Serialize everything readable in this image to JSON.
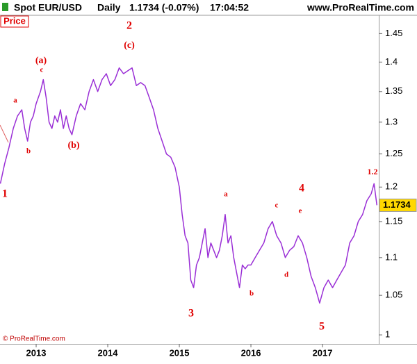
{
  "header": {
    "instrument": "Spot EUR/USD",
    "period": "Daily",
    "quote": "1.1734 (-0.07%)",
    "time": "17:04:52",
    "site": "www.ProRealTime.com"
  },
  "panel_label": "Price",
  "copyright": "© ProRealTime.com",
  "chart_data": {
    "type": "line",
    "log_scale": true,
    "grid": false,
    "x": [
      2012.5,
      2012.56,
      2012.62,
      2012.68,
      2012.74,
      2012.8,
      2012.84,
      2012.88,
      2012.92,
      2012.96,
      2013.0,
      2013.06,
      2013.1,
      2013.14,
      2013.18,
      2013.22,
      2013.26,
      2013.3,
      2013.34,
      2013.38,
      2013.42,
      2013.46,
      2013.5,
      2013.56,
      2013.62,
      2013.68,
      2013.74,
      2013.8,
      2013.86,
      2013.92,
      2013.98,
      2014.04,
      2014.1,
      2014.16,
      2014.22,
      2014.28,
      2014.34,
      2014.4,
      2014.46,
      2014.52,
      2014.58,
      2014.64,
      2014.7,
      2014.76,
      2014.82,
      2014.88,
      2014.94,
      2015.0,
      2015.04,
      2015.08,
      2015.12,
      2015.16,
      2015.2,
      2015.24,
      2015.28,
      2015.32,
      2015.36,
      2015.4,
      2015.44,
      2015.48,
      2015.52,
      2015.56,
      2015.6,
      2015.64,
      2015.68,
      2015.72,
      2015.76,
      2015.8,
      2015.84,
      2015.88,
      2015.92,
      2015.96,
      2016.0,
      2016.06,
      2016.12,
      2016.18,
      2016.24,
      2016.3,
      2016.36,
      2016.42,
      2016.48,
      2016.54,
      2016.6,
      2016.66,
      2016.72,
      2016.78,
      2016.84,
      2016.9,
      2016.96,
      2017.02,
      2017.08,
      2017.14,
      2017.2,
      2017.26,
      2017.32,
      2017.38,
      2017.44,
      2017.5,
      2017.56,
      2017.62,
      2017.68,
      2017.72,
      2017.76
    ],
    "series": [
      {
        "color": "#9a2fd6",
        "values": [
          1.205,
          1.235,
          1.26,
          1.29,
          1.31,
          1.32,
          1.29,
          1.27,
          1.3,
          1.31,
          1.33,
          1.35,
          1.37,
          1.34,
          1.3,
          1.29,
          1.31,
          1.3,
          1.32,
          1.29,
          1.31,
          1.29,
          1.28,
          1.31,
          1.33,
          1.32,
          1.35,
          1.37,
          1.35,
          1.37,
          1.38,
          1.36,
          1.37,
          1.39,
          1.38,
          1.385,
          1.39,
          1.36,
          1.365,
          1.36,
          1.34,
          1.32,
          1.29,
          1.27,
          1.25,
          1.245,
          1.23,
          1.2,
          1.16,
          1.13,
          1.12,
          1.07,
          1.06,
          1.09,
          1.1,
          1.12,
          1.14,
          1.1,
          1.12,
          1.11,
          1.1,
          1.11,
          1.13,
          1.16,
          1.12,
          1.13,
          1.1,
          1.08,
          1.06,
          1.09,
          1.085,
          1.09,
          1.09,
          1.1,
          1.11,
          1.12,
          1.14,
          1.15,
          1.13,
          1.12,
          1.1,
          1.11,
          1.115,
          1.13,
          1.12,
          1.1,
          1.075,
          1.06,
          1.04,
          1.06,
          1.07,
          1.06,
          1.07,
          1.08,
          1.09,
          1.12,
          1.13,
          1.15,
          1.16,
          1.18,
          1.19,
          1.205,
          1.1734
        ]
      }
    ],
    "last_value": 1.1734,
    "xlim": [
      2012.495,
      2017.786
    ],
    "xticks": [
      2013,
      2014,
      2015,
      2016,
      2017
    ],
    "ylim": [
      0.989,
      1.473
    ],
    "yticks": [
      1,
      1.05,
      1.1,
      1.15,
      1.2,
      1.25,
      1.3,
      1.35,
      1.4,
      1.45
    ],
    "annotations": [
      "2",
      "(c)",
      "(a)",
      "c",
      "a",
      "b",
      "(b)",
      "1",
      "3",
      "a",
      "b",
      "c",
      "4",
      "e",
      "d",
      "5",
      "1.2"
    ]
  }
}
